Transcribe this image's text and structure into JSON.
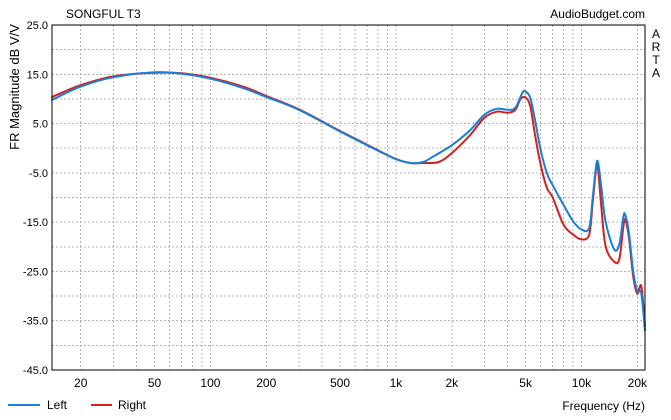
{
  "chart_data": {
    "type": "line",
    "title": "SONGFUL T3",
    "watermark": "AudioBudget.com",
    "side_label": [
      "A",
      "R",
      "T",
      "A"
    ],
    "xlabel": "Frequency (Hz)",
    "ylabel": "FR Magnitude dB V/V",
    "xscale": "log",
    "xlim": [
      14,
      22000
    ],
    "ylim": [
      -45,
      25
    ],
    "grid": true,
    "legend_position": "bottom-left",
    "x_ticks": [
      {
        "value": 20,
        "label": "20"
      },
      {
        "value": 50,
        "label": "50"
      },
      {
        "value": 100,
        "label": "100"
      },
      {
        "value": 200,
        "label": "200"
      },
      {
        "value": 500,
        "label": "500"
      },
      {
        "value": 1000,
        "label": "1k"
      },
      {
        "value": 2000,
        "label": "2k"
      },
      {
        "value": 5000,
        "label": "5k"
      },
      {
        "value": 10000,
        "label": "10k"
      },
      {
        "value": 20000,
        "label": "20k"
      }
    ],
    "y_ticks": [
      {
        "value": 25,
        "label": "25.0"
      },
      {
        "value": 15,
        "label": "15.0"
      },
      {
        "value": 5,
        "label": "5.0"
      },
      {
        "value": -5,
        "label": "-5.0"
      },
      {
        "value": -15,
        "label": "-15.0"
      },
      {
        "value": -25,
        "label": "-25.0"
      },
      {
        "value": -35,
        "label": "-35.0"
      },
      {
        "value": -45,
        "label": "-45.0"
      }
    ],
    "series": [
      {
        "name": "Left",
        "color": "#1a7fd4",
        "points": [
          [
            14,
            9.8
          ],
          [
            20,
            12.5
          ],
          [
            30,
            14.4
          ],
          [
            50,
            15.4
          ],
          [
            70,
            15.1
          ],
          [
            100,
            14.1
          ],
          [
            150,
            12.2
          ],
          [
            200,
            10.4
          ],
          [
            300,
            7.8
          ],
          [
            500,
            3.4
          ],
          [
            700,
            0.6
          ],
          [
            1000,
            -2.2
          ],
          [
            1200,
            -3.0
          ],
          [
            1400,
            -2.8
          ],
          [
            1600,
            -1.6
          ],
          [
            2000,
            0.6
          ],
          [
            2500,
            3.6
          ],
          [
            3000,
            6.8
          ],
          [
            3500,
            8.0
          ],
          [
            4000,
            7.8
          ],
          [
            4400,
            8.2
          ],
          [
            4800,
            11.2
          ],
          [
            5000,
            11.5
          ],
          [
            5300,
            10.2
          ],
          [
            5600,
            6.0
          ],
          [
            6000,
            0.0
          ],
          [
            6500,
            -5.0
          ],
          [
            7000,
            -7.5
          ],
          [
            8000,
            -11.5
          ],
          [
            9000,
            -14.8
          ],
          [
            10000,
            -16.5
          ],
          [
            11000,
            -16.2
          ],
          [
            11500,
            -10.0
          ],
          [
            12000,
            -3.5
          ],
          [
            12300,
            -3.0
          ],
          [
            12800,
            -8.0
          ],
          [
            13500,
            -15.0
          ],
          [
            15000,
            -20.5
          ],
          [
            16000,
            -19.5
          ],
          [
            16800,
            -14.0
          ],
          [
            17200,
            -13.5
          ],
          [
            18000,
            -17.0
          ],
          [
            19000,
            -25.0
          ],
          [
            20000,
            -29.0
          ],
          [
            21000,
            -29.5
          ],
          [
            22000,
            -37.0
          ]
        ]
      },
      {
        "name": "Right",
        "color": "#d81e1e",
        "points": [
          [
            14,
            10.4
          ],
          [
            20,
            12.8
          ],
          [
            30,
            14.6
          ],
          [
            50,
            15.3
          ],
          [
            70,
            15.2
          ],
          [
            100,
            14.3
          ],
          [
            150,
            12.5
          ],
          [
            200,
            10.6
          ],
          [
            300,
            7.9
          ],
          [
            500,
            3.5
          ],
          [
            700,
            0.7
          ],
          [
            1000,
            -2.2
          ],
          [
            1200,
            -3.0
          ],
          [
            1400,
            -3.0
          ],
          [
            1700,
            -2.8
          ],
          [
            2000,
            -1.0
          ],
          [
            2500,
            2.6
          ],
          [
            3000,
            6.2
          ],
          [
            3500,
            7.4
          ],
          [
            4000,
            7.2
          ],
          [
            4400,
            7.8
          ],
          [
            4700,
            10.0
          ],
          [
            5000,
            10.3
          ],
          [
            5300,
            8.5
          ],
          [
            5600,
            3.0
          ],
          [
            6000,
            -3.0
          ],
          [
            6500,
            -8.0
          ],
          [
            7000,
            -10.0
          ],
          [
            8000,
            -15.5
          ],
          [
            9000,
            -17.5
          ],
          [
            10000,
            -18.5
          ],
          [
            11000,
            -17.5
          ],
          [
            11500,
            -11.0
          ],
          [
            12000,
            -4.0
          ],
          [
            12300,
            -4.5
          ],
          [
            12800,
            -12.0
          ],
          [
            13500,
            -20.0
          ],
          [
            15000,
            -23.0
          ],
          [
            16000,
            -22.5
          ],
          [
            16800,
            -16.0
          ],
          [
            17200,
            -14.5
          ],
          [
            18000,
            -18.0
          ],
          [
            19000,
            -26.0
          ],
          [
            20000,
            -29.5
          ],
          [
            21000,
            -28.0
          ],
          [
            22000,
            -36.0
          ]
        ]
      }
    ]
  }
}
